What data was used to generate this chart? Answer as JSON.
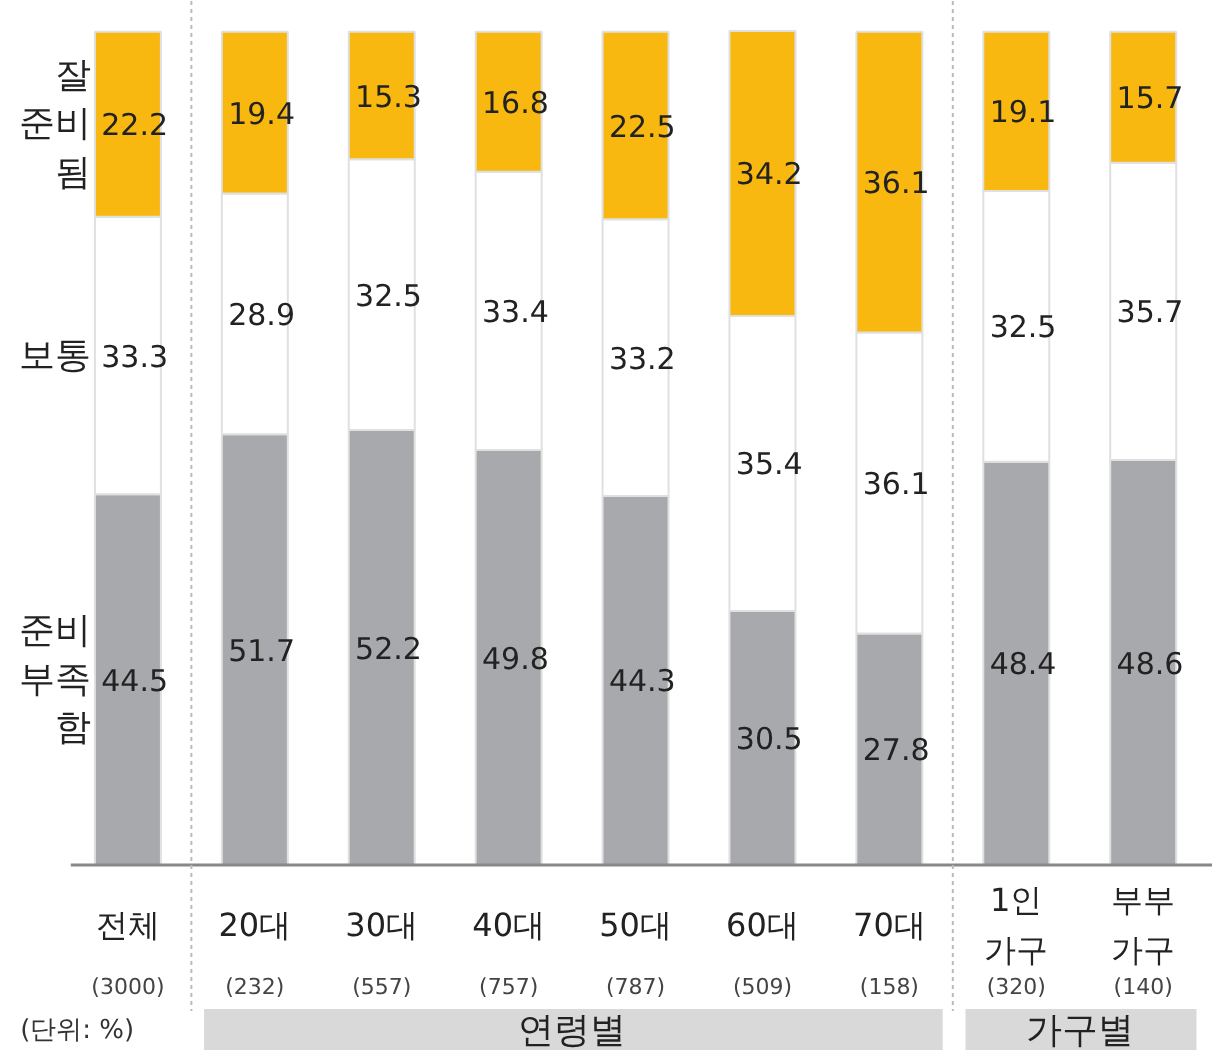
{
  "chart_data": {
    "type": "bar",
    "stacked": true,
    "data_labels": true,
    "grid": false,
    "categories": [
      "전체",
      "20대",
      "30대",
      "40대",
      "50대",
      "60대",
      "70대",
      "1인\n가구",
      "부부\n가구"
    ],
    "series": [
      {
        "name": "준비\n부족\n함",
        "color": "#a7a9ac",
        "values": [
          44.5,
          51.7,
          52.2,
          49.8,
          44.3,
          30.5,
          27.8,
          48.4,
          48.6
        ]
      },
      {
        "name": "보통",
        "color": "#ffffff",
        "values": [
          33.3,
          28.9,
          32.5,
          33.4,
          33.2,
          35.4,
          36.1,
          32.5,
          35.7
        ]
      },
      {
        "name": "잘\n준비\n됨",
        "color": "#f8b80f",
        "values": [
          22.2,
          19.4,
          15.3,
          16.8,
          22.5,
          34.2,
          36.1,
          19.1,
          15.7
        ]
      }
    ],
    "annotations": [
      "(3000)",
      "(232)",
      "(557)",
      "(757)",
      "(787)",
      "(509)",
      "(158)",
      "(320)",
      "(140)",
      "(단위: %)",
      "연령별",
      "가구별"
    ]
  }
}
